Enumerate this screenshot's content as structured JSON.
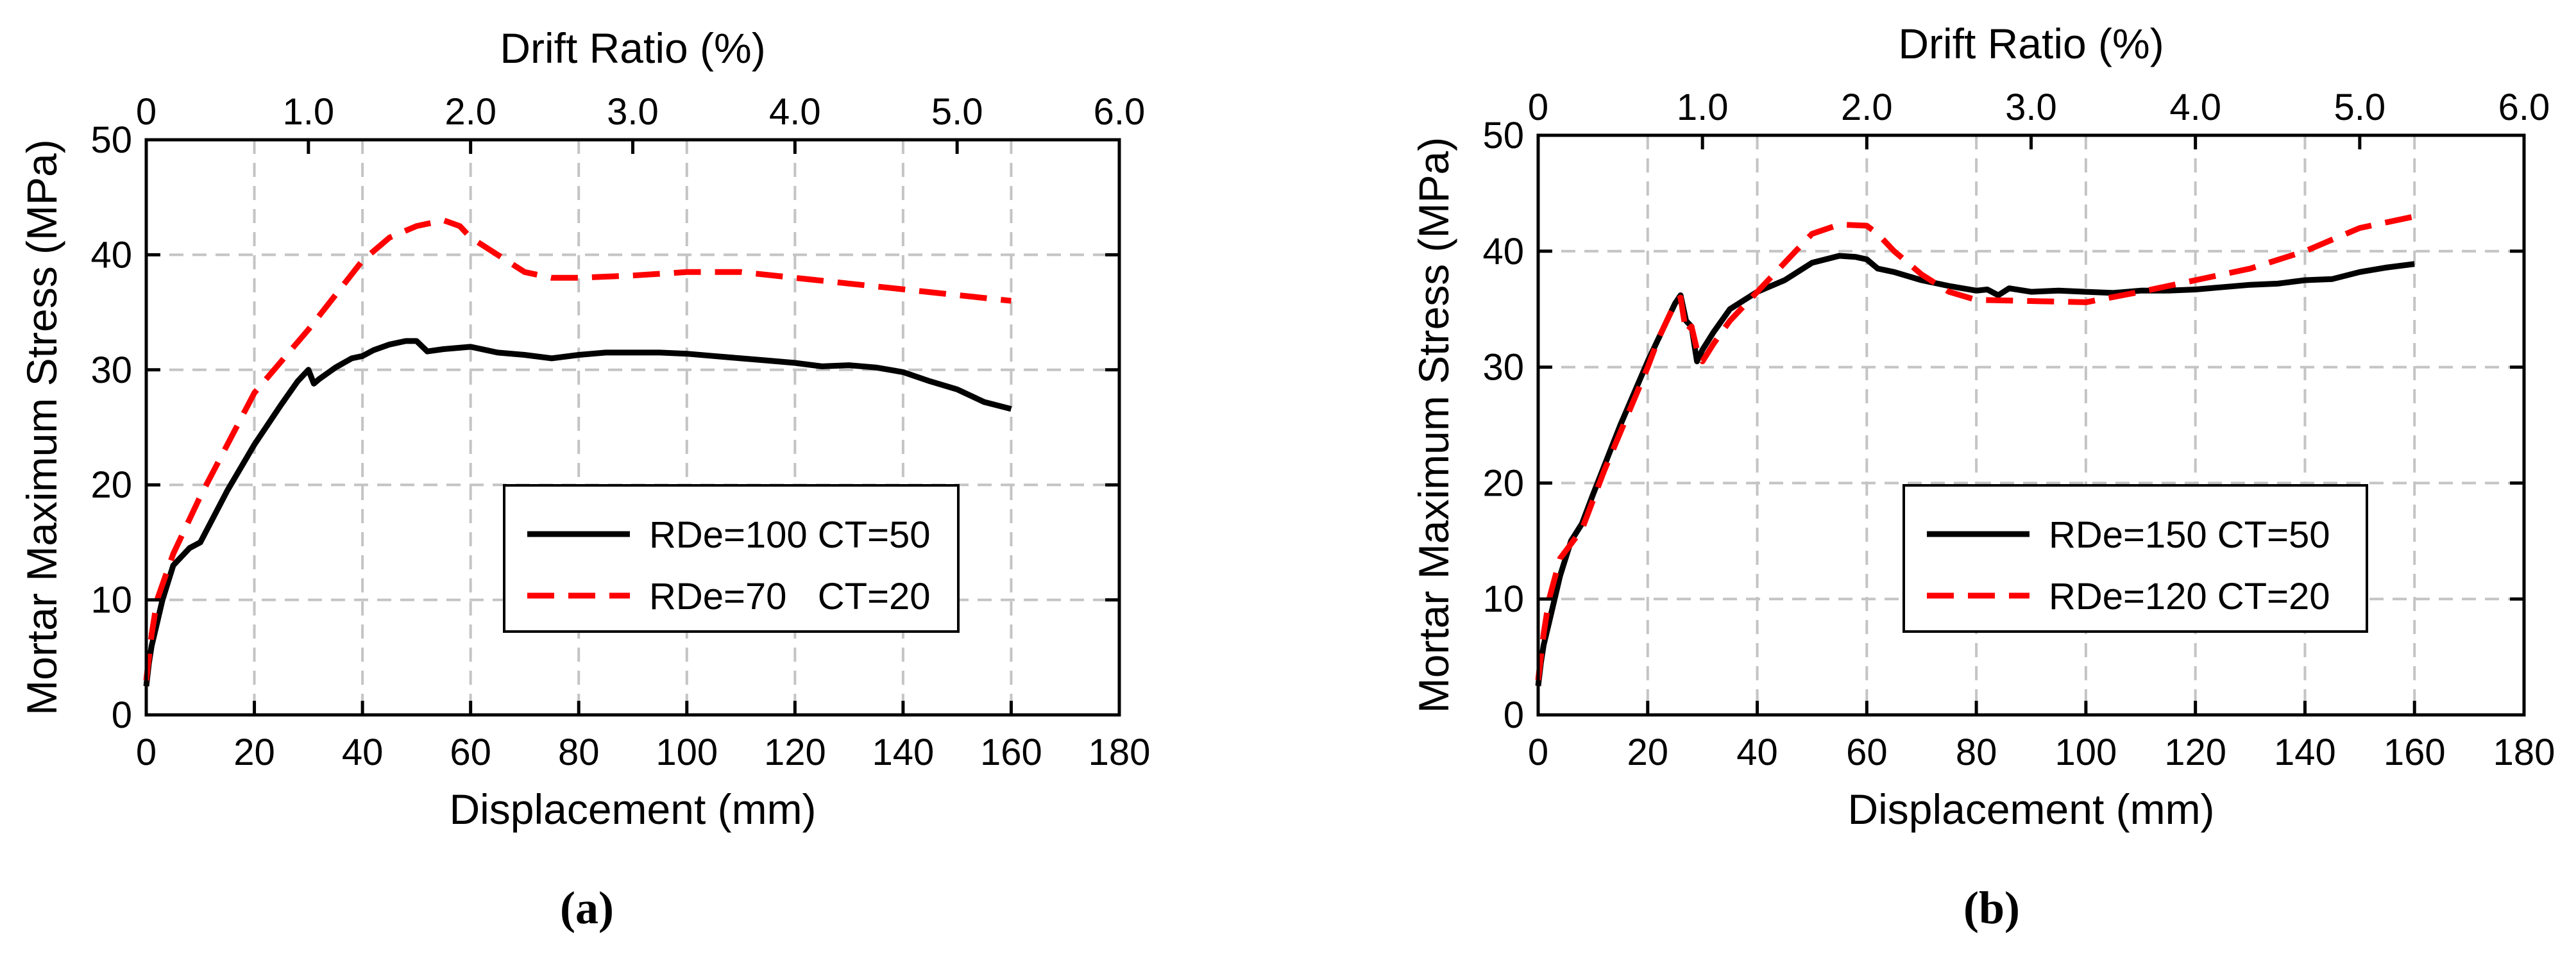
{
  "chart_data": [
    {
      "type": "line",
      "panel_label": "(a)",
      "xlabel": "Displacement (mm)",
      "ylabel": "Mortar Maximum Stress (MPa)",
      "x2label": "Drift Ratio (%)",
      "xlim": [
        0,
        180
      ],
      "ylim": [
        0,
        50
      ],
      "x2lim": [
        0,
        6.0
      ],
      "xticks": [
        0,
        20,
        40,
        60,
        80,
        100,
        120,
        140,
        160,
        180
      ],
      "yticks": [
        0,
        10,
        20,
        30,
        40,
        50
      ],
      "x2ticks": [
        "0",
        "1.0",
        "2.0",
        "3.0",
        "4.0",
        "5.0",
        "6.0"
      ],
      "grid": true,
      "legend_position": "center-right",
      "series": [
        {
          "name": "RDe=100 CT=50",
          "color": "#000000",
          "style": "solid",
          "x": [
            0,
            0.5,
            1,
            2,
            3,
            4,
            5,
            8,
            10,
            15,
            20,
            25,
            28,
            30,
            31,
            32,
            35,
            38,
            40,
            42,
            45,
            48,
            50,
            52,
            55,
            60,
            65,
            70,
            75,
            80,
            85,
            90,
            95,
            100,
            105,
            110,
            115,
            120,
            125,
            130,
            135,
            140,
            145,
            150,
            155,
            160
          ],
          "y": [
            2.5,
            4.5,
            6,
            8,
            10,
            11.5,
            13,
            14.5,
            15,
            19.5,
            23.5,
            27,
            29,
            30,
            28.8,
            29.2,
            30.2,
            31,
            31.2,
            31.7,
            32.2,
            32.5,
            32.5,
            31.6,
            31.8,
            32,
            31.5,
            31.3,
            31,
            31.3,
            31.5,
            31.5,
            31.5,
            31.4,
            31.2,
            31.0,
            30.8,
            30.6,
            30.3,
            30.4,
            30.2,
            29.8,
            29.0,
            28.3,
            27.2,
            26.6
          ]
        },
        {
          "name": "RDe=70   CT=20",
          "color": "#ff0000",
          "style": "dashed",
          "x": [
            0,
            1,
            2,
            5,
            10,
            20,
            30,
            40,
            45,
            50,
            55,
            58,
            60,
            65,
            70,
            75,
            80,
            90,
            100,
            110,
            120,
            130,
            140,
            150,
            160
          ],
          "y": [
            3,
            7,
            10,
            14,
            19,
            28,
            33.5,
            39.5,
            41.5,
            42.5,
            43,
            42.5,
            41.5,
            40,
            38.5,
            38,
            38,
            38.2,
            38.5,
            38.5,
            38,
            37.5,
            37,
            36.5,
            36
          ]
        }
      ]
    },
    {
      "type": "line",
      "panel_label": "(b)",
      "xlabel": "Displacement (mm)",
      "ylabel": "Mortar Maximum Stress (MPa)",
      "x2label": "Drift Ratio (%)",
      "xlim": [
        0,
        180
      ],
      "ylim": [
        0,
        50
      ],
      "x2lim": [
        0,
        6.0
      ],
      "xticks": [
        0,
        20,
        40,
        60,
        80,
        100,
        120,
        140,
        160,
        180
      ],
      "yticks": [
        0,
        10,
        20,
        30,
        40,
        50
      ],
      "x2ticks": [
        "0",
        "1.0",
        "2.0",
        "3.0",
        "4.0",
        "5.0",
        "6.0"
      ],
      "grid": true,
      "legend_position": "center-right",
      "series": [
        {
          "name": "RDe=150 CT=50",
          "color": "#000000",
          "style": "solid",
          "x": [
            0,
            0.5,
            1,
            2,
            4,
            6,
            8,
            10,
            15,
            20,
            22,
            24,
            25,
            26,
            27,
            28,
            29,
            30,
            32,
            35,
            40,
            45,
            50,
            55,
            58,
            60,
            62,
            65,
            70,
            75,
            80,
            82,
            84,
            86,
            90,
            95,
            100,
            105,
            110,
            115,
            120,
            125,
            130,
            135,
            140,
            145,
            150,
            155,
            160
          ],
          "y": [
            2.5,
            4.5,
            6,
            8,
            12,
            15,
            16.5,
            19,
            25,
            30.5,
            32.5,
            34.5,
            35.5,
            36.2,
            34,
            33.5,
            30.5,
            31.5,
            33,
            35,
            36.5,
            37.5,
            39,
            39.6,
            39.5,
            39.3,
            38.5,
            38.2,
            37.5,
            37,
            36.6,
            36.7,
            36.2,
            36.8,
            36.5,
            36.6,
            36.5,
            36.4,
            36.6,
            36.6,
            36.7,
            36.9,
            37.1,
            37.2,
            37.5,
            37.6,
            38.2,
            38.6,
            38.9
          ]
        },
        {
          "name": "RDe=120 CT=20",
          "color": "#ff0000",
          "style": "dashed",
          "x": [
            0,
            0.5,
            1,
            2,
            4,
            8,
            12,
            16,
            20,
            22,
            24,
            25,
            26,
            27,
            28,
            29,
            30,
            32,
            35,
            40,
            45,
            50,
            55,
            60,
            62,
            65,
            70,
            75,
            80,
            90,
            100,
            110,
            120,
            130,
            140,
            150,
            160
          ],
          "y": [
            3,
            5,
            7,
            10,
            13.5,
            16,
            21,
            25.5,
            30,
            32.5,
            34.5,
            35.5,
            36,
            33,
            33.5,
            31.5,
            30.5,
            32,
            34,
            36.5,
            39,
            41.5,
            42.3,
            42.2,
            41.5,
            40,
            38,
            36.5,
            35.8,
            35.7,
            35.6,
            36.5,
            37.5,
            38.5,
            40,
            42,
            43
          ]
        }
      ]
    }
  ]
}
